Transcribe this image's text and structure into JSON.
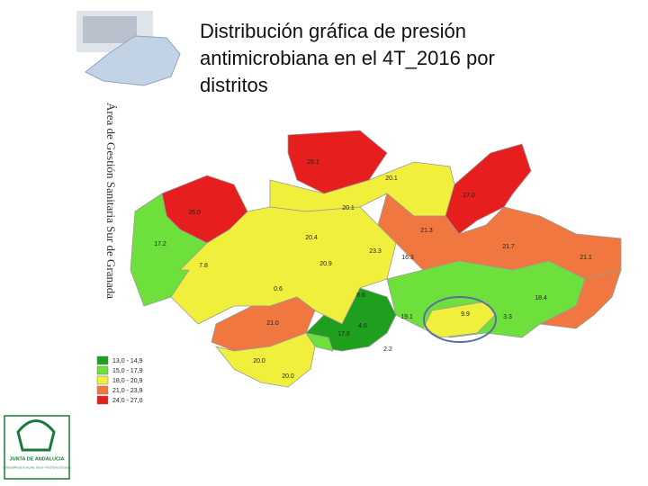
{
  "header": {
    "title": "Distribución gráfica de presión antimicrobiana en el 4T_2016 por distritos",
    "side_label": "Área de Gestión Sanitaria Sur de Granada"
  },
  "map": {
    "district_labels": [
      "26.1",
      "20.1",
      "27.0",
      "26.0",
      "20.1",
      "21.3",
      "17.2",
      "20.4",
      "23.3",
      "21.7",
      "7.8",
      "20.9",
      "21.1",
      "16.3",
      "0.6",
      "8.6",
      "18.4",
      "19.1",
      "9.9",
      "21.0",
      "17.6",
      "4.6",
      "3.3",
      "2.2",
      "20.0",
      "20.0"
    ],
    "legend": [
      {
        "label": "13,0 - 14,9",
        "color": "#1ea01e"
      },
      {
        "label": "15,0 - 17,9",
        "color": "#6ee03c"
      },
      {
        "label": "18,0 - 20,9",
        "color": "#f0f03c"
      },
      {
        "label": "21,0 - 23,9",
        "color": "#f07840"
      },
      {
        "label": "24,0 - 27,0",
        "color": "#e61e1e"
      }
    ]
  },
  "logo": {
    "name": "JUNTA DE ANDALUCIA",
    "department": "CONSEJERÍA DE IGUALDAD, SALUD Y POLÍTICAS SOCIALES"
  }
}
